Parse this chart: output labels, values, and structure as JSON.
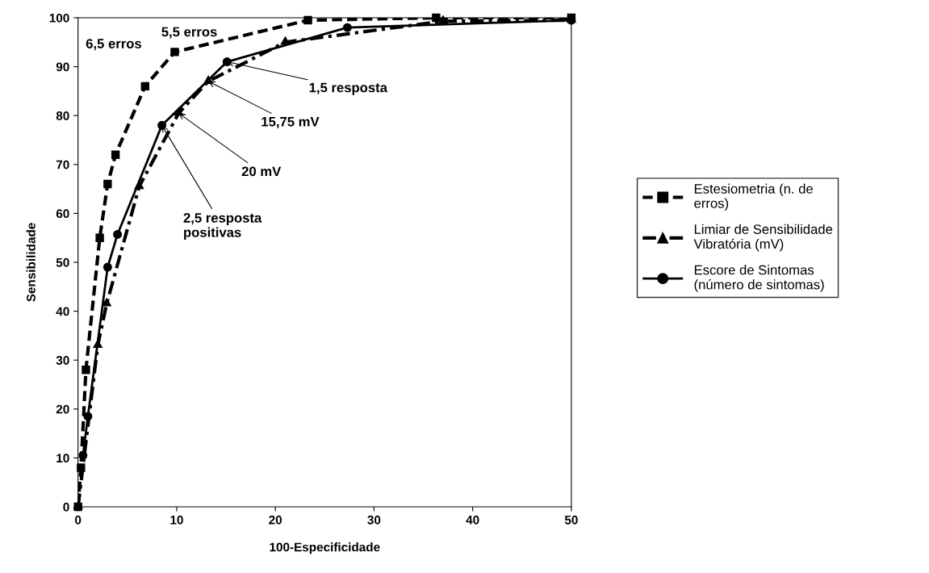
{
  "chart_data": {
    "type": "line",
    "xlabel": "100-Especificidade",
    "ylabel": "Sensibilidade",
    "xlim": [
      0,
      50
    ],
    "xticks": [
      0,
      10,
      20,
      30,
      40,
      50
    ],
    "ylim": [
      0,
      100
    ],
    "yticks": [
      0,
      10,
      20,
      30,
      40,
      50,
      60,
      70,
      80,
      90,
      100
    ],
    "grid": false,
    "legend": "right",
    "series": [
      {
        "name": "Estesiometria (n. de\nerros)",
        "color": "#000000",
        "marker": "square",
        "line_style": "dashed",
        "x": [
          0,
          0.3,
          0.8,
          2.2,
          3.0,
          3.8,
          6.8,
          9.8,
          23.3,
          36.3,
          50
        ],
        "values": [
          0,
          8,
          28,
          55,
          66,
          72,
          86,
          93,
          99.5,
          100,
          100
        ]
      },
      {
        "name": "Limiar de Sensibilidade\nVibratória (mV)",
        "color": "#000000",
        "marker": "triangle",
        "line_style": "dashdot",
        "x": [
          0,
          2.0,
          2.9,
          6.2,
          10.2,
          13.2,
          21,
          37,
          50
        ],
        "values": [
          0,
          33,
          41.5,
          65.5,
          80.5,
          87,
          95,
          99.3,
          99.5
        ]
      },
      {
        "name": "Escore de Sintomas\n(número de sintomas)",
        "color": "#000000",
        "marker": "circle",
        "line_style": "solid",
        "x": [
          0.5,
          1.0,
          3.0,
          4.0,
          8.5,
          15.1,
          27.3,
          50
        ],
        "values": [
          10.5,
          18.5,
          49,
          55.7,
          78,
          91,
          98,
          99.5
        ]
      }
    ],
    "annotations": [
      {
        "text": "5,5 erros",
        "x": 9.8,
        "y": 93
      },
      {
        "text": "6,5 erros",
        "x": 6.8,
        "y": 86
      },
      {
        "text": "1,5 resposta",
        "x": 15.1,
        "y": 91
      },
      {
        "text": "15,75 mV",
        "x": 13.2,
        "y": 87
      },
      {
        "text": "20 mV",
        "x": 10.2,
        "y": 80.5
      },
      {
        "text": "2,5 resposta\npositivas",
        "x": 8.5,
        "y": 78
      }
    ]
  }
}
